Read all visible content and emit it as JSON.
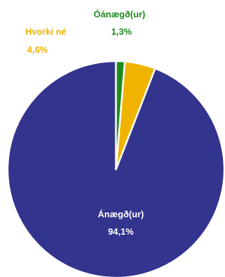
{
  "chart_data": {
    "type": "pie",
    "title": "",
    "slices": [
      {
        "label": "Ánægð(ur)",
        "value": 94.1,
        "value_label": "94,1%",
        "color": "#33348e",
        "label_color": "#ffffff"
      },
      {
        "label": "Hvorki né",
        "value": 4.6,
        "value_label": "4,6%",
        "color": "#f0b400",
        "label_color": "#f0b400"
      },
      {
        "label": "Óánægð(ur)",
        "value": 1.3,
        "value_label": "1,3%",
        "color": "#1e8a1e",
        "label_color": "#1e8a1e"
      }
    ],
    "legend": "none",
    "start_angle_deg": 0,
    "direction": "counterclockwise"
  }
}
